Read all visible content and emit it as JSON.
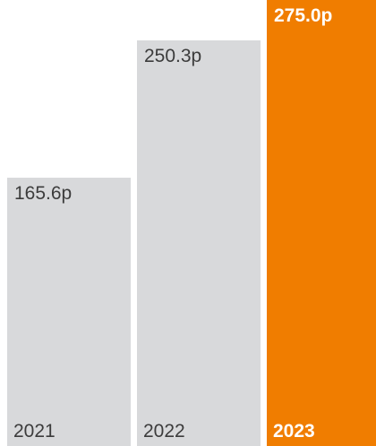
{
  "chart_data": {
    "type": "bar",
    "title": "",
    "xlabel": "",
    "ylabel": "",
    "categories": [
      "2021",
      "2022",
      "2023"
    ],
    "values": [
      165.6,
      250.3,
      275.0
    ],
    "value_labels": [
      "165.6p",
      "250.3p",
      "275.0p"
    ],
    "unit": "p",
    "ylim": [
      0,
      275.0
    ],
    "grid": false,
    "legend": "none",
    "highlight_index": 2,
    "colors": {
      "bar": "#d8d9db",
      "highlight_bar": "#f07d00",
      "text": "#3c3c3c",
      "highlight_text": "#ffffff"
    }
  }
}
